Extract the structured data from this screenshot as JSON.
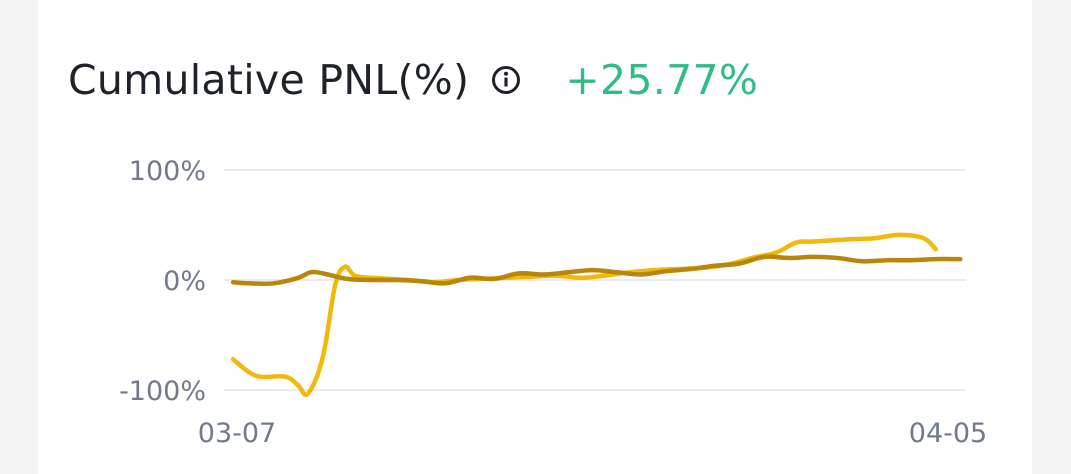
{
  "header": {
    "title": "Cumulative PNL(%)",
    "info_icon": "info-circle-icon",
    "value": "+25.77%",
    "value_color": "#2ebd85"
  },
  "chart_data": {
    "type": "line",
    "ylim": [
      -100,
      100
    ],
    "y_ticks": [
      {
        "value": 100,
        "label": "100%"
      },
      {
        "value": 0,
        "label": "0%"
      },
      {
        "value": -100,
        "label": "-100%"
      }
    ],
    "x_range": [
      0,
      29
    ],
    "x_ticks": [
      {
        "x": 0,
        "label": "03-07"
      },
      {
        "x": 29,
        "label": "04-05"
      }
    ],
    "grid": true,
    "series": [
      {
        "color": "#f0b90b",
        "points": [
          [
            -0.16,
            -72
          ],
          [
            0.5,
            -84
          ],
          [
            1.0,
            -88
          ],
          [
            2.0,
            -88
          ],
          [
            2.5,
            -96
          ],
          [
            2.9,
            -103
          ],
          [
            3.5,
            -70
          ],
          [
            4.0,
            -5
          ],
          [
            4.4,
            12
          ],
          [
            4.8,
            4
          ],
          [
            5.5,
            2
          ],
          [
            7,
            0
          ],
          [
            8,
            -2
          ],
          [
            9,
            0
          ],
          [
            10,
            1
          ],
          [
            12,
            3
          ],
          [
            13,
            4
          ],
          [
            14,
            2
          ],
          [
            15,
            4
          ],
          [
            16,
            7
          ],
          [
            17,
            9
          ],
          [
            18,
            10
          ],
          [
            19,
            11
          ],
          [
            20,
            14
          ],
          [
            21,
            20
          ],
          [
            22,
            25
          ],
          [
            22.8,
            34
          ],
          [
            23.5,
            35
          ],
          [
            25,
            37
          ],
          [
            26,
            38
          ],
          [
            27,
            41
          ],
          [
            28,
            38
          ],
          [
            28.5,
            28
          ]
        ]
      },
      {
        "color": "#b8860b",
        "points": [
          [
            -0.16,
            -2
          ],
          [
            0.5,
            -3
          ],
          [
            1.5,
            -3
          ],
          [
            2.5,
            2
          ],
          [
            3,
            7
          ],
          [
            3.5,
            6
          ],
          [
            4.5,
            1
          ],
          [
            5.5,
            0
          ],
          [
            6.5,
            0
          ],
          [
            7.5,
            -1
          ],
          [
            8.5,
            -3
          ],
          [
            9.5,
            2
          ],
          [
            10.5,
            1
          ],
          [
            11.5,
            6
          ],
          [
            12.5,
            5
          ],
          [
            13.5,
            7
          ],
          [
            14.5,
            9
          ],
          [
            15.5,
            7
          ],
          [
            16.5,
            5
          ],
          [
            17.5,
            8
          ],
          [
            18.5,
            10
          ],
          [
            19.5,
            13
          ],
          [
            20.5,
            15
          ],
          [
            21.5,
            21
          ],
          [
            22.5,
            20
          ],
          [
            23.5,
            21
          ],
          [
            24.5,
            20
          ],
          [
            25.5,
            17
          ],
          [
            26.5,
            18
          ],
          [
            27.5,
            18
          ],
          [
            28.5,
            19
          ],
          [
            29.5,
            19
          ]
        ]
      }
    ]
  }
}
